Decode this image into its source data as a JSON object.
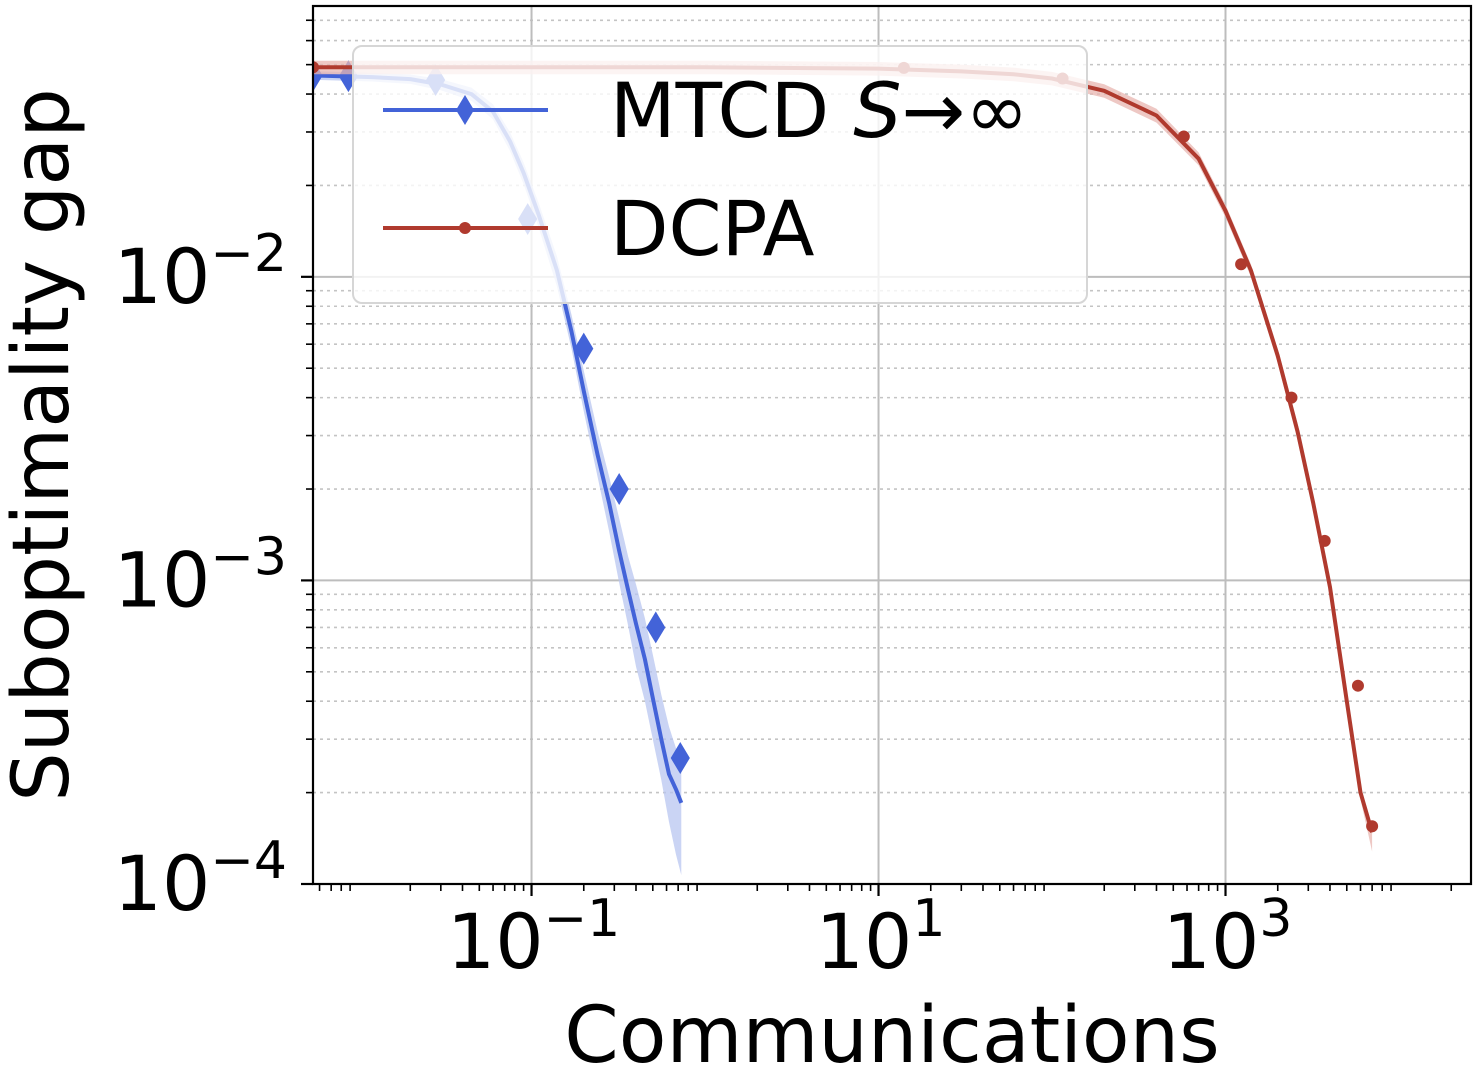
{
  "chart_data": {
    "type": "line",
    "title": "",
    "xlabel": "Communications",
    "ylabel": "Suboptimality gap",
    "xscale": "log",
    "yscale": "log",
    "xlim": [
      0.0055,
      26000
    ],
    "ylim": [
      0.0001,
      0.078
    ],
    "xticks": [
      {
        "value": 0.1,
        "base": "10",
        "exp": "−1"
      },
      {
        "value": 10,
        "base": "10",
        "exp": "1"
      },
      {
        "value": 1000,
        "base": "10",
        "exp": "3"
      }
    ],
    "yticks": [
      {
        "value": 0.0001,
        "base": "10",
        "exp": "−4"
      },
      {
        "value": 0.001,
        "base": "10",
        "exp": "−3"
      },
      {
        "value": 0.01,
        "base": "10",
        "exp": "−2"
      }
    ],
    "grid": true,
    "legend_position": "upper-center",
    "series": [
      {
        "name": "MTCD S→∞",
        "label_main": "MTCD ",
        "label_italic": "S",
        "label_tail": "→∞",
        "color": "#4363d8",
        "band_color": "#b8c6f0",
        "marker": "diamond",
        "x": [
          0.0055,
          0.006,
          0.008,
          0.012,
          0.02,
          0.03,
          0.045,
          0.06,
          0.075,
          0.09,
          0.11,
          0.14,
          0.17,
          0.2,
          0.24,
          0.28,
          0.32,
          0.36,
          0.4,
          0.45,
          0.5,
          0.56,
          0.62,
          0.68,
          0.73
        ],
        "y": [
          0.046,
          0.046,
          0.0458,
          0.0455,
          0.0448,
          0.043,
          0.04,
          0.035,
          0.028,
          0.022,
          0.016,
          0.0105,
          0.0066,
          0.0042,
          0.0026,
          0.0018,
          0.00125,
          0.00093,
          0.00072,
          0.00055,
          0.00041,
          0.0003,
          0.00023,
          0.000205,
          0.000185
        ],
        "band_lower": [
          0.0445,
          0.0445,
          0.0443,
          0.044,
          0.0432,
          0.0412,
          0.038,
          0.033,
          0.026,
          0.0202,
          0.0145,
          0.0093,
          0.0058,
          0.0036,
          0.0022,
          0.00145,
          0.00098,
          0.00071,
          0.00052,
          0.0004,
          0.0003,
          0.00022,
          0.00016,
          0.000125,
          0.000107
        ],
        "band_upper": [
          0.0475,
          0.0475,
          0.0473,
          0.047,
          0.0464,
          0.0448,
          0.042,
          0.037,
          0.03,
          0.0238,
          0.0175,
          0.0117,
          0.0075,
          0.0049,
          0.0031,
          0.0022,
          0.0016,
          0.0012,
          0.00097,
          0.00075,
          0.00057,
          0.00042,
          0.00033,
          0.00028,
          0.00026
        ],
        "markers_x": [
          0.0055,
          0.0088,
          0.028,
          0.095,
          0.2,
          0.32,
          0.52,
          0.72
        ],
        "markers_y": [
          0.046,
          0.0458,
          0.0445,
          0.0155,
          0.0058,
          0.002,
          0.0007,
          0.00026
        ]
      },
      {
        "name": "DCPA",
        "label_main": "DCPA",
        "label_italic": "",
        "label_tail": "",
        "color": "#b03a2e",
        "band_color": "#e8b6b0",
        "marker": "circle",
        "x": [
          0.0055,
          0.01,
          0.1,
          1,
          10,
          30,
          60,
          100,
          200,
          400,
          700,
          1000,
          1400,
          2000,
          2600,
          3200,
          4000,
          5000,
          6000,
          7000
        ],
        "y": [
          0.049,
          0.049,
          0.049,
          0.049,
          0.0485,
          0.0475,
          0.0465,
          0.045,
          0.041,
          0.034,
          0.0245,
          0.0165,
          0.0105,
          0.0055,
          0.0031,
          0.0018,
          0.00095,
          0.0004,
          0.0002,
          0.000148
        ],
        "band_lower": [
          0.0465,
          0.0465,
          0.0465,
          0.0465,
          0.046,
          0.045,
          0.0441,
          0.0427,
          0.0389,
          0.0322,
          0.0233,
          0.0157,
          0.01,
          0.0052,
          0.0029,
          0.0017,
          0.0009,
          0.00038,
          0.00019,
          0.000128
        ],
        "band_upper": [
          0.0515,
          0.0515,
          0.0515,
          0.0515,
          0.051,
          0.05,
          0.0489,
          0.0473,
          0.0431,
          0.0358,
          0.0257,
          0.0173,
          0.011,
          0.0058,
          0.0033,
          0.0019,
          0.001,
          0.00042,
          0.00021,
          0.000155
        ],
        "markers_x": [
          0.0055,
          14,
          115,
          575,
          1230,
          2400,
          3730,
          5800,
          7000
        ],
        "markers_y": [
          0.049,
          0.0488,
          0.045,
          0.029,
          0.011,
          0.004,
          0.00135,
          0.00045,
          0.000155
        ]
      }
    ]
  }
}
